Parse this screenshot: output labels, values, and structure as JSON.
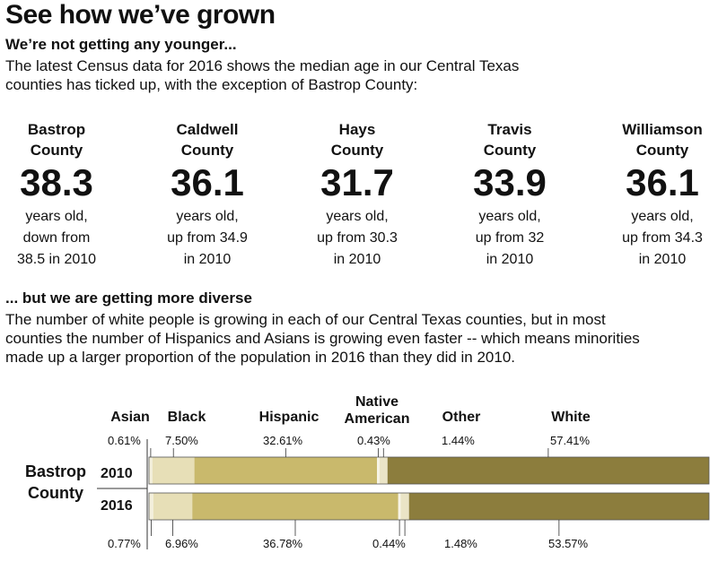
{
  "title": "See how we’ve grown",
  "section1": {
    "heading": "We’re not getting any younger...",
    "text_line1": "The latest Census data for 2016 shows the median age in our Central Texas",
    "text_line2": "counties has ticked up, with the exception of Bastrop County:"
  },
  "counties": [
    {
      "name1": "Bastrop",
      "name2": "County",
      "age": "38.3",
      "d1": "years old,",
      "d2": "down from",
      "d3": "38.5 in 2010"
    },
    {
      "name1": "Caldwell",
      "name2": "County",
      "age": "36.1",
      "d1": "years old,",
      "d2": "up from 34.9",
      "d3": "in 2010"
    },
    {
      "name1": "Hays",
      "name2": "County",
      "age": "31.7",
      "d1": "years old,",
      "d2": "up from 30.3",
      "d3": "in 2010"
    },
    {
      "name1": "Travis",
      "name2": "County",
      "age": "33.9",
      "d1": "years old,",
      "d2": "up from 32",
      "d3": "in 2010"
    },
    {
      "name1": "Williamson",
      "name2": "County",
      "age": "36.1",
      "d1": "years old,",
      "d2": "up from 34.3",
      "d3": "in 2010"
    }
  ],
  "section2": {
    "heading": "... but we are getting more diverse",
    "text_line1": "The number of white people is growing in each of our Central Texas counties, but in most",
    "text_line2": "counties the number of Hispanics and Asians is growing even faster -- which means minorities",
    "text_line3": "made up a larger proportion of the population in 2016 than they did in 2010."
  },
  "chart_data": {
    "type": "bar",
    "orientation": "horizontal-stacked",
    "county_label_line1": "Bastrop",
    "county_label_line2": "County",
    "categories": [
      "2010",
      "2016"
    ],
    "series": [
      {
        "name": "Asian",
        "values": [
          0.61,
          0.77
        ],
        "labels": [
          "0.61%",
          "0.77%"
        ],
        "color": "#f3efdc"
      },
      {
        "name": "Black",
        "values": [
          7.5,
          6.96
        ],
        "labels": [
          "7.50%",
          "6.96%"
        ],
        "color": "#e7dfb7"
      },
      {
        "name": "Hispanic",
        "values": [
          32.61,
          36.78
        ],
        "labels": [
          "32.61%",
          "36.78%"
        ],
        "color": "#c9b96c"
      },
      {
        "name": "Native American",
        "values": [
          0.43,
          0.44
        ],
        "labels": [
          "0.43%",
          "0.44%"
        ],
        "color": "#f7f4e6"
      },
      {
        "name": "Other",
        "values": [
          1.44,
          1.48
        ],
        "labels": [
          "1.44%",
          "1.48%"
        ],
        "color": "#eae4c6"
      },
      {
        "name": "White",
        "values": [
          57.41,
          53.57
        ],
        "labels": [
          "57.41%",
          "53.57%"
        ],
        "color": "#8c7d3d"
      }
    ],
    "legend_native_line1": "Native",
    "legend_native_line2": "American",
    "xlim": [
      0,
      100
    ],
    "grid": false
  }
}
